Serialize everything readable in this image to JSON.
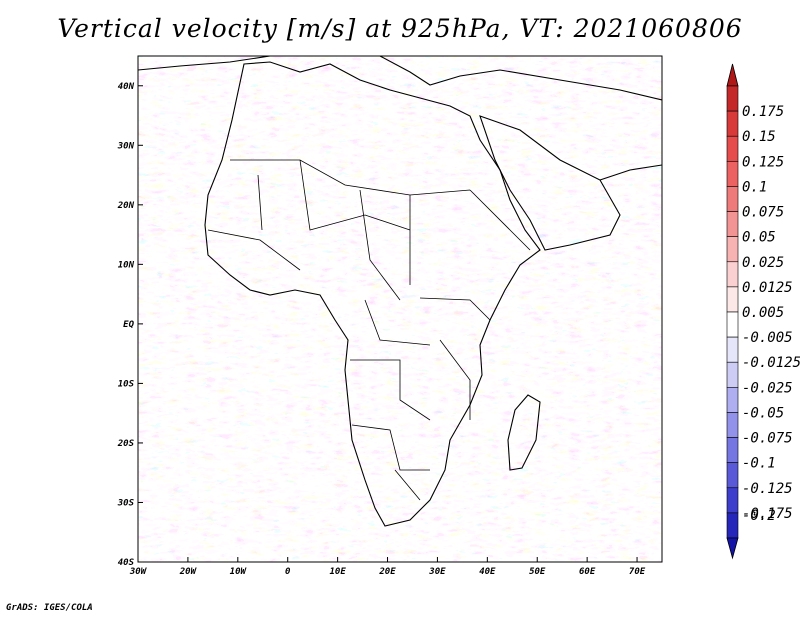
{
  "title": "Vertical velocity [m/s] at 925hPa, VT: 2021060806",
  "footer": "GrADS: IGES/COLA",
  "map": {
    "lon_range": [
      -30,
      75
    ],
    "lat_range": [
      -40,
      45
    ],
    "lon_ticks": [
      {
        "value": -30,
        "label": "30W"
      },
      {
        "value": -20,
        "label": "20W"
      },
      {
        "value": -10,
        "label": "10W"
      },
      {
        "value": 0,
        "label": "0"
      },
      {
        "value": 10,
        "label": "10E"
      },
      {
        "value": 20,
        "label": "20E"
      },
      {
        "value": 30,
        "label": "30E"
      },
      {
        "value": 40,
        "label": "40E"
      },
      {
        "value": 50,
        "label": "50E"
      },
      {
        "value": 60,
        "label": "60E"
      },
      {
        "value": 70,
        "label": "70E"
      }
    ],
    "lat_ticks": [
      {
        "value": 40,
        "label": "40N"
      },
      {
        "value": 30,
        "label": "30N"
      },
      {
        "value": 20,
        "label": "20N"
      },
      {
        "value": 10,
        "label": "10N"
      },
      {
        "value": 0,
        "label": "EQ"
      },
      {
        "value": -10,
        "label": "10S"
      },
      {
        "value": -20,
        "label": "20S"
      },
      {
        "value": -30,
        "label": "30S"
      },
      {
        "value": -40,
        "label": "40S"
      }
    ]
  },
  "colorbar": {
    "levels": [
      {
        "label": "0.175",
        "color": "#c42828"
      },
      {
        "label": "0.15",
        "color": "#d83a3a"
      },
      {
        "label": "0.125",
        "color": "#e64c4c"
      },
      {
        "label": "0.1",
        "color": "#ec6262"
      },
      {
        "label": "0.075",
        "color": "#ef7a7a"
      },
      {
        "label": "0.05",
        "color": "#f39494"
      },
      {
        "label": "0.025",
        "color": "#f7b2b2"
      },
      {
        "label": "0.0125",
        "color": "#fad0d0"
      },
      {
        "label": "0.005",
        "color": "#fde8e8"
      },
      {
        "label": "-0.005",
        "color": "#ffffff"
      },
      {
        "label": "-0.0125",
        "color": "#e6e6fb"
      },
      {
        "label": "-0.025",
        "color": "#ccccf5"
      },
      {
        "label": "-0.05",
        "color": "#aeaef0"
      },
      {
        "label": "-0.075",
        "color": "#9292ea"
      },
      {
        "label": "-0.1",
        "color": "#7676e2"
      },
      {
        "label": "-0.125",
        "color": "#5a5ad8"
      },
      {
        "label": "-0.175",
        "color": "#3e3ecc"
      },
      {
        "label": "-0.2",
        "color": "#2626bb"
      }
    ],
    "upper_cap_color": "#b01818",
    "lower_cap_color": "#1414a8"
  }
}
